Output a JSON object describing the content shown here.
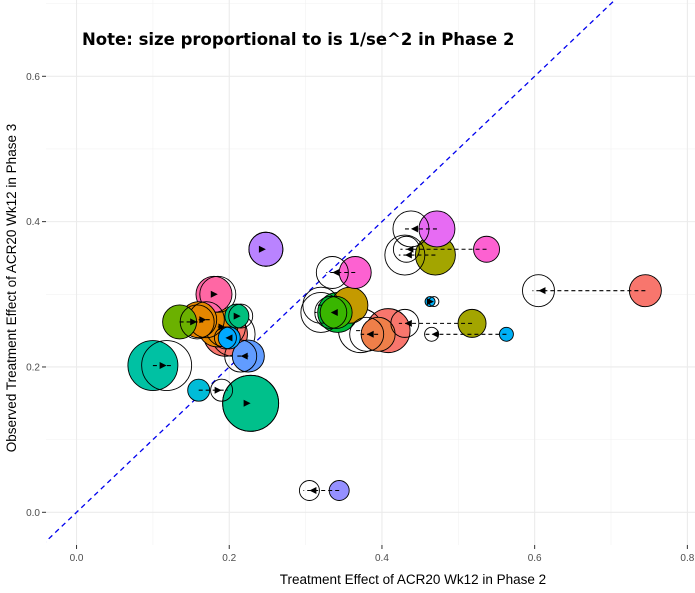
{
  "chart_data": {
    "type": "scatter",
    "title": "Note: size proportional to is 1/se^2 in Phase 2",
    "xlabel": "Treatment Effect of ACR20 Wk12 in Phase 2",
    "ylabel": "Observed Treatment Effect of ACR20 Wk12 in Phase 3",
    "xlim": [
      -0.04,
      0.81
    ],
    "ylim": [
      -0.045,
      0.705
    ],
    "x_ticks": [
      0.0,
      0.2,
      0.4,
      0.6,
      0.8
    ],
    "x_tick_labels": [
      "0.0",
      "0.2",
      "0.4",
      "0.6",
      "0.8"
    ],
    "y_ticks": [
      0.0,
      0.2,
      0.4,
      0.6
    ],
    "y_tick_labels": [
      "0.0",
      "0.2",
      "0.4",
      "0.6"
    ],
    "grid": true,
    "reference_line": {
      "type": "identity",
      "color": "#0000ee",
      "style": "dashed"
    },
    "legend": "none",
    "size_encoding": "1/se^2 in Phase 2",
    "points": [
      {
        "observed_x": 0.745,
        "adjusted_x": 0.605,
        "y": 0.305,
        "size": 16,
        "color": "#f8766d"
      },
      {
        "observed_x": 0.563,
        "adjusted_x": 0.465,
        "y": 0.245,
        "size": 7,
        "color": "#00b0f6"
      },
      {
        "observed_x": 0.518,
        "adjusted_x": 0.43,
        "y": 0.26,
        "size": 14,
        "color": "#a3a500"
      },
      {
        "observed_x": 0.472,
        "adjusted_x": 0.438,
        "y": 0.39,
        "size": 18,
        "color": "#e76bf3"
      },
      {
        "observed_x": 0.537,
        "adjusted_x": 0.432,
        "y": 0.362,
        "size": 13,
        "color": "#fd61d1"
      },
      {
        "observed_x": 0.47,
        "adjusted_x": 0.43,
        "y": 0.354,
        "size": 20,
        "color": "#a3a500"
      },
      {
        "observed_x": 0.463,
        "adjusted_x": 0.468,
        "y": 0.29,
        "size": 5,
        "color": "#00b0f6"
      },
      {
        "observed_x": 0.408,
        "adjusted_x": 0.372,
        "y": 0.25,
        "size": 22,
        "color": "#f8766d"
      },
      {
        "observed_x": 0.395,
        "adjusted_x": 0.38,
        "y": 0.245,
        "size": 17,
        "color": "#ef7f49"
      },
      {
        "observed_x": 0.365,
        "adjusted_x": 0.335,
        "y": 0.33,
        "size": 16,
        "color": "#fd61d1"
      },
      {
        "observed_x": 0.358,
        "adjusted_x": 0.32,
        "y": 0.285,
        "size": 18,
        "color": "#c49a00"
      },
      {
        "observed_x": 0.342,
        "adjusted_x": 0.32,
        "y": 0.275,
        "size": 20,
        "color": "#00ba38"
      },
      {
        "observed_x": 0.34,
        "adjusted_x": 0.333,
        "y": 0.275,
        "size": 16,
        "color": "#39b600"
      },
      {
        "observed_x": 0.344,
        "adjusted_x": 0.305,
        "y": 0.03,
        "size": 10,
        "color": "#9590ff"
      },
      {
        "observed_x": 0.248,
        "adjusted_x": 0.248,
        "y": 0.362,
        "size": 17,
        "color": "#b983ff"
      },
      {
        "observed_x": 0.228,
        "adjusted_x": 0.228,
        "y": 0.15,
        "size": 28,
        "color": "#00c08b"
      },
      {
        "observed_x": 0.225,
        "adjusted_x": 0.215,
        "y": 0.215,
        "size": 16,
        "color": "#619cff"
      },
      {
        "observed_x": 0.21,
        "adjusted_x": 0.215,
        "y": 0.27,
        "size": 12,
        "color": "#00bf7d"
      },
      {
        "observed_x": 0.195,
        "adjusted_x": 0.205,
        "y": 0.245,
        "size": 22,
        "color": "#f8766d"
      },
      {
        "observed_x": 0.185,
        "adjusted_x": 0.195,
        "y": 0.255,
        "size": 20,
        "color": "#e58700"
      },
      {
        "observed_x": 0.18,
        "adjusted_x": 0.185,
        "y": 0.3,
        "size": 18,
        "color": "#ff67a4"
      },
      {
        "observed_x": 0.16,
        "adjusted_x": 0.17,
        "y": 0.265,
        "size": 18,
        "color": "#e58700"
      },
      {
        "observed_x": 0.135,
        "adjusted_x": 0.158,
        "y": 0.262,
        "size": 17,
        "color": "#6bb100"
      },
      {
        "observed_x": 0.16,
        "adjusted_x": 0.19,
        "y": 0.168,
        "size": 11,
        "color": "#00bcd8"
      },
      {
        "observed_x": 0.2,
        "adjusted_x": 0.195,
        "y": 0.24,
        "size": 11,
        "color": "#00a9ff"
      },
      {
        "observed_x": 0.1,
        "adjusted_x": 0.118,
        "y": 0.202,
        "size": 25,
        "color": "#00c1a3"
      }
    ]
  }
}
